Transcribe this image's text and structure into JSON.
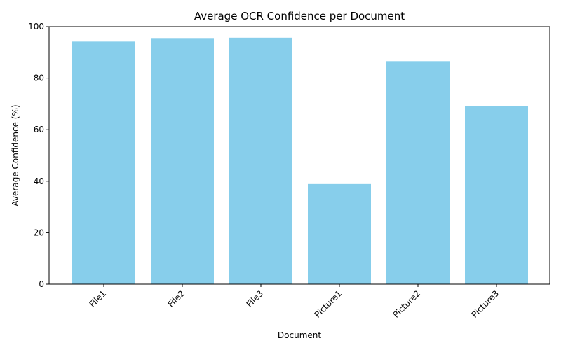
{
  "chart_data": {
    "type": "bar",
    "title": "Average OCR Confidence per Document",
    "xlabel": "Document",
    "ylabel": "Average Confidence (%)",
    "categories": [
      "File1",
      "File2",
      "File3",
      "Picture1",
      "Picture2",
      "Picture3"
    ],
    "values": [
      94.2,
      95.3,
      95.7,
      38.9,
      86.6,
      69.1
    ],
    "ylim": [
      0,
      100
    ],
    "yticks": [
      0,
      20,
      40,
      60,
      80,
      100
    ],
    "bar_color": "#87CEEB",
    "grid": false,
    "legend": "none"
  }
}
